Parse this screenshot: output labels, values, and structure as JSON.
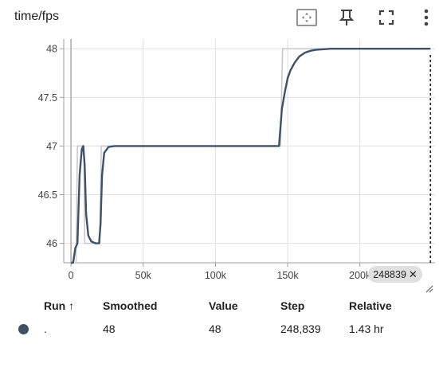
{
  "header": {
    "title": "time/fps"
  },
  "toolbar": {
    "icons": [
      "fit-domain-icon",
      "pin-icon",
      "fullscreen-icon",
      "more-vert-icon"
    ]
  },
  "colors": {
    "line_smoothed": "#425066",
    "line_raw": "#c5cad3",
    "grid": "#e0e0e0",
    "cursor": "#212121"
  },
  "chart_data": {
    "type": "line",
    "x_ticks": [
      "0",
      "50k",
      "100k",
      "150k",
      "200k"
    ],
    "y_ticks": [
      "46",
      "46.5",
      "47",
      "47.5",
      "48"
    ],
    "xlim": [
      -5000,
      252000
    ],
    "ylim": [
      45.8,
      48.1
    ],
    "cursor_step": 248839,
    "series": [
      {
        "role": "raw",
        "x": [
          0,
          3500,
          4500,
          5000,
          9000,
          9500,
          10000,
          16000,
          20000,
          21000,
          22000,
          26000,
          145000,
          146500,
          148000,
          248839
        ],
        "y": [
          45.8,
          45.8,
          47,
          47,
          47,
          46,
          46,
          46,
          46,
          47,
          47,
          47,
          47,
          48,
          48,
          48
        ]
      },
      {
        "role": "smoothed",
        "x": [
          0,
          1500,
          3000,
          4500,
          6000,
          7500,
          8500,
          9500,
          10500,
          12000,
          14000,
          17000,
          19500,
          20500,
          21500,
          23000,
          26000,
          30000,
          144000,
          146000,
          148000,
          150000,
          152000,
          155000,
          158000,
          162000,
          166000,
          170000,
          175000,
          180000,
          190000,
          200000,
          248839
        ],
        "y": [
          45.8,
          45.8,
          45.95,
          46.0,
          46.7,
          46.97,
          47.0,
          46.8,
          46.3,
          46.08,
          46.02,
          46.0,
          46.0,
          46.2,
          46.7,
          46.93,
          46.99,
          47.0,
          47.0,
          47.38,
          47.55,
          47.7,
          47.78,
          47.86,
          47.92,
          47.96,
          47.98,
          47.99,
          47.995,
          48.0,
          48.0,
          48.0,
          48.0
        ]
      }
    ]
  },
  "step_chip": {
    "label": "248839"
  },
  "table": {
    "headers": {
      "run": "Run ↑",
      "smoothed": "Smoothed",
      "value": "Value",
      "step": "Step",
      "relative": "Relative"
    },
    "rows": [
      {
        "run": ".",
        "smoothed": "48",
        "value": "48",
        "step": "248,839",
        "relative": "1.43 hr"
      }
    ]
  }
}
